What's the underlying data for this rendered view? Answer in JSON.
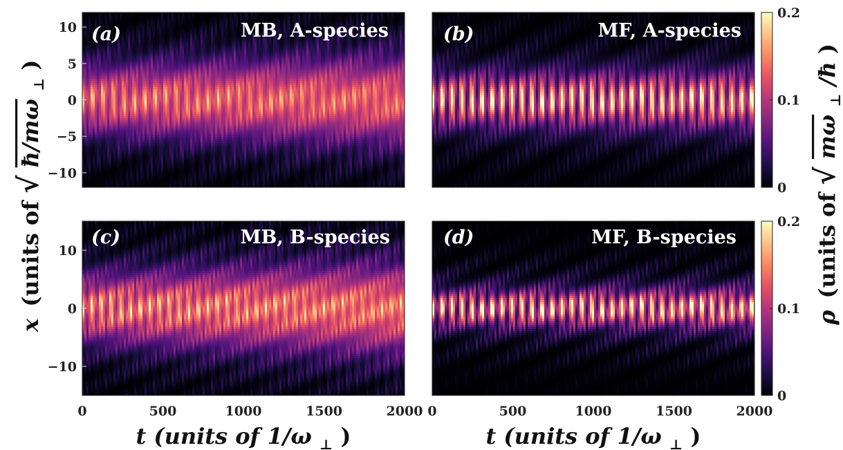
{
  "colormap": [
    "#000004",
    "#1c1044",
    "#4f127b",
    "#812581",
    "#b5367a",
    "#e55064",
    "#fb8761",
    "#fec287",
    "#fcfdbf"
  ],
  "chart_data": [
    {
      "type": "heatmap",
      "panel_label": "(a)",
      "title": "MB, A-species",
      "xlim": [
        0,
        2000
      ],
      "ylim": [
        -12,
        12
      ],
      "yticks": [
        "10",
        "5",
        "0",
        "−5",
        "−10"
      ],
      "ytick_values": [
        10,
        5,
        0,
        -5,
        -10
      ],
      "xticks": [],
      "model": {
        "width": 3.2,
        "decay": 0.7,
        "period": 65,
        "amp": 0.5,
        "peak": 0.16,
        "edge": 0.04
      }
    },
    {
      "type": "heatmap",
      "panel_label": "(b)",
      "title": "MF, A-species",
      "xlim": [
        0,
        2000
      ],
      "ylim": [
        -12,
        12
      ],
      "yticks": [],
      "ytick_values": [],
      "xticks": [],
      "model": {
        "width": 2.6,
        "decay": 0.1,
        "period": 62,
        "amp": 0.85,
        "peak": 0.2,
        "edge": 0.05
      },
      "colorbar": {
        "min": 0,
        "max": 0.2,
        "ticks": [
          "0.2",
          "0.1",
          "0"
        ],
        "tick_values": [
          0.2,
          0.1,
          0
        ]
      }
    },
    {
      "type": "heatmap",
      "panel_label": "(c)",
      "title": "MB, B-species",
      "xlim": [
        0,
        2000
      ],
      "ylim": [
        -15,
        15
      ],
      "yticks": [
        "10",
        "0",
        "−10"
      ],
      "ytick_values": [
        10,
        0,
        -10
      ],
      "xticks": [
        "0",
        "500",
        "1000",
        "1500",
        "2000"
      ],
      "xtick_values": [
        0,
        500,
        1000,
        1500,
        2000
      ],
      "model": {
        "width": 4.0,
        "decay": 0.8,
        "period": 60,
        "amp": 0.55,
        "peak": 0.17,
        "edge": 0.05
      }
    },
    {
      "type": "heatmap",
      "panel_label": "(d)",
      "title": "MF, B-species",
      "xlim": [
        0,
        2000
      ],
      "ylim": [
        -15,
        15
      ],
      "yticks": [],
      "ytick_values": [],
      "xticks": [
        "0",
        "500",
        "1000",
        "1500",
        "2000"
      ],
      "xtick_values": [
        0,
        500,
        1000,
        1500,
        2000
      ],
      "model": {
        "width": 2.2,
        "decay": 0.15,
        "period": 62,
        "amp": 0.9,
        "peak": 0.2,
        "edge": 0.07
      },
      "colorbar": {
        "min": 0,
        "max": 0.2,
        "ticks": [
          "0.2",
          "0.1",
          "0"
        ],
        "tick_values": [
          0.2,
          0.1,
          0
        ]
      }
    }
  ],
  "axes": {
    "y_var": "x",
    "y_units_prefix": "(units of ",
    "y_units_sqrt": "ħ/mω",
    "y_units_sub": "⊥",
    "y_units_close": ")",
    "x_label_left": "t (units of 1/ω",
    "x_label_sub": "⊥",
    "x_label_close": ")",
    "x_label_right": "t (units of 1/ω",
    "cb_var": "ρ",
    "cb_units_prefix": "(units of ",
    "cb_units_sqrt": "mω",
    "cb_units_sub": "⊥",
    "cb_units_tail": "/ħ",
    "cb_units_close": ")"
  }
}
